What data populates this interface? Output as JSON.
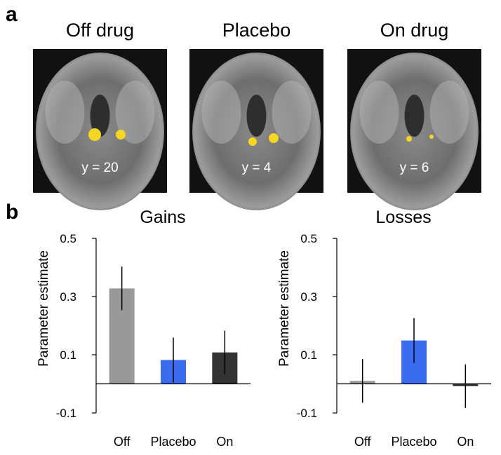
{
  "panel_labels": [
    "a",
    "b"
  ],
  "images": [
    {
      "title": "Off drug",
      "label": "y = 20"
    },
    {
      "title": "Placebo",
      "label": "y = 4"
    },
    {
      "title": "On drug",
      "label": "y = 6"
    }
  ],
  "chart_data": [
    {
      "type": "bar",
      "title": "Gains",
      "y_label": "Parameter estimate",
      "categories": [
        "Off",
        "Placebo",
        "On"
      ],
      "values": [
        0.328,
        0.082,
        0.108
      ],
      "errors": [
        0.075,
        0.077,
        0.075
      ],
      "colors": [
        "#999999",
        "#3b6cf0",
        "#333333"
      ],
      "ylim": [
        -0.1,
        0.5
      ],
      "yticks": [
        0.5,
        0.3,
        0.1,
        -0.1
      ]
    },
    {
      "type": "bar",
      "title": "Losses",
      "y_label": "Parameter estimate",
      "categories": [
        "Off",
        "Placebo",
        "On"
      ],
      "values": [
        0.01,
        0.149,
        -0.008
      ],
      "errors": [
        0.075,
        0.077,
        0.075
      ],
      "colors": [
        "#999999",
        "#3b6cf0",
        "#333333"
      ],
      "ylim": [
        -0.1,
        0.5
      ],
      "yticks": [
        0.5,
        0.3,
        0.1,
        -0.1
      ]
    }
  ]
}
